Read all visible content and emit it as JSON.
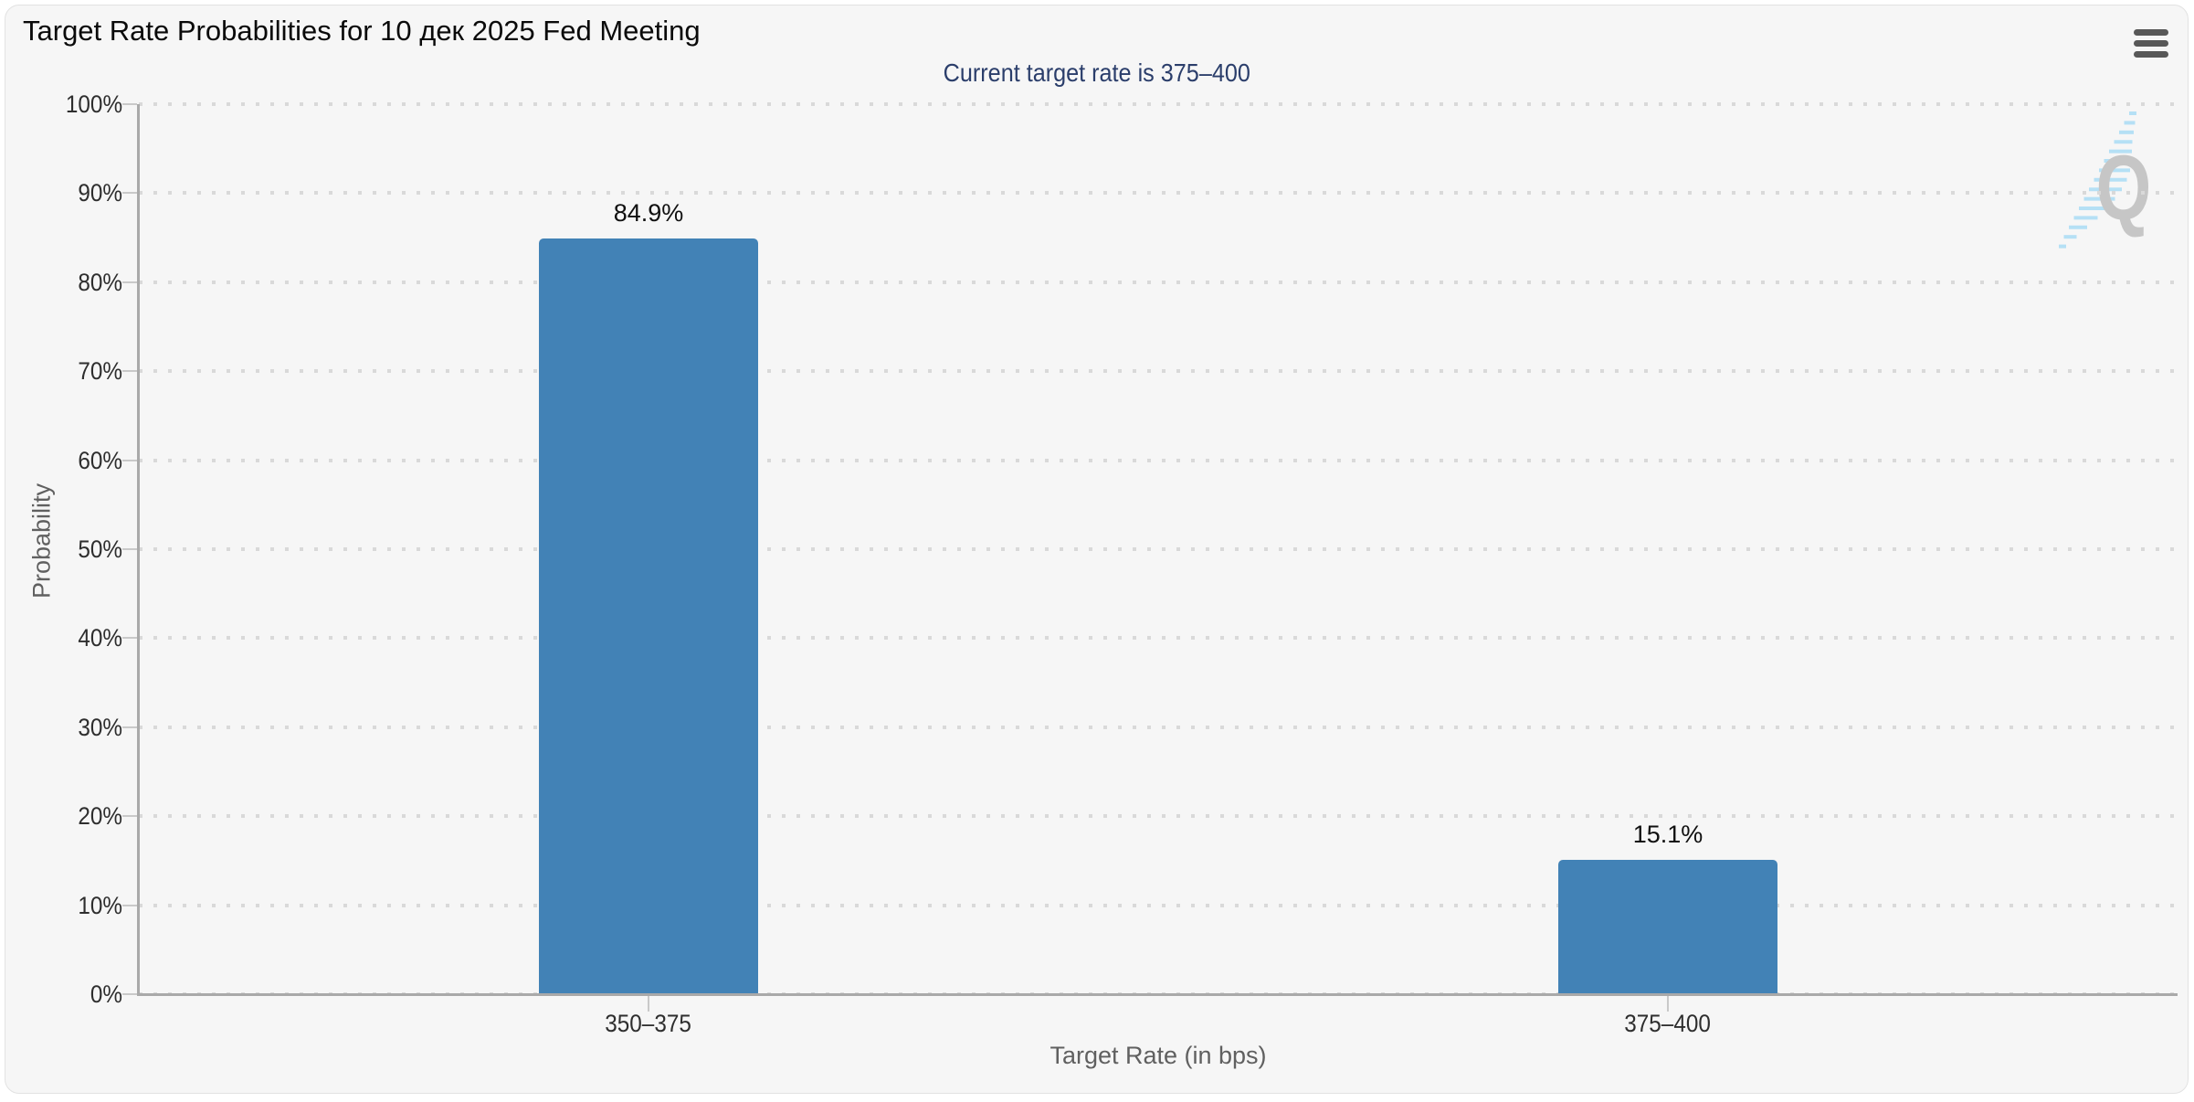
{
  "page": {
    "title": "Target Rate Probabilities for 10 дек 2025 Fed Meeting",
    "subtitle": "Current target rate is 375–400",
    "menu_icon": "hamburger-icon",
    "watermark_letter": "Q"
  },
  "colors": {
    "page_bg": "#ffffff",
    "card_bg": "#f6f6f6",
    "title": "#0a0a0a",
    "subtitle": "#2b3e6b",
    "bar": "#4282b6",
    "label": "#2e2e2e",
    "axis_title": "#606060",
    "axis_line": "#a9a9a9",
    "tick": "#c9c9c9",
    "grid_dot": "#d9d9d9",
    "watermark_gray": "#c6c6c6",
    "watermark_blue": "#b5e0f5"
  },
  "chart_data": {
    "type": "bar",
    "title": "Target Rate Probabilities for 10 дек 2025 Fed Meeting",
    "subtitle": "Current target rate is 375–400",
    "categories": [
      "350–375",
      "375–400"
    ],
    "values": [
      84.9,
      15.1
    ],
    "value_labels": [
      "84.9%",
      "15.1%"
    ],
    "xlabel": "Target Rate (in bps)",
    "ylabel": "Probability",
    "ylim": [
      0,
      100
    ],
    "ytick_step": 10,
    "ytick_suffix": "%",
    "grid": "dotted-horizontal",
    "legend": "none"
  }
}
